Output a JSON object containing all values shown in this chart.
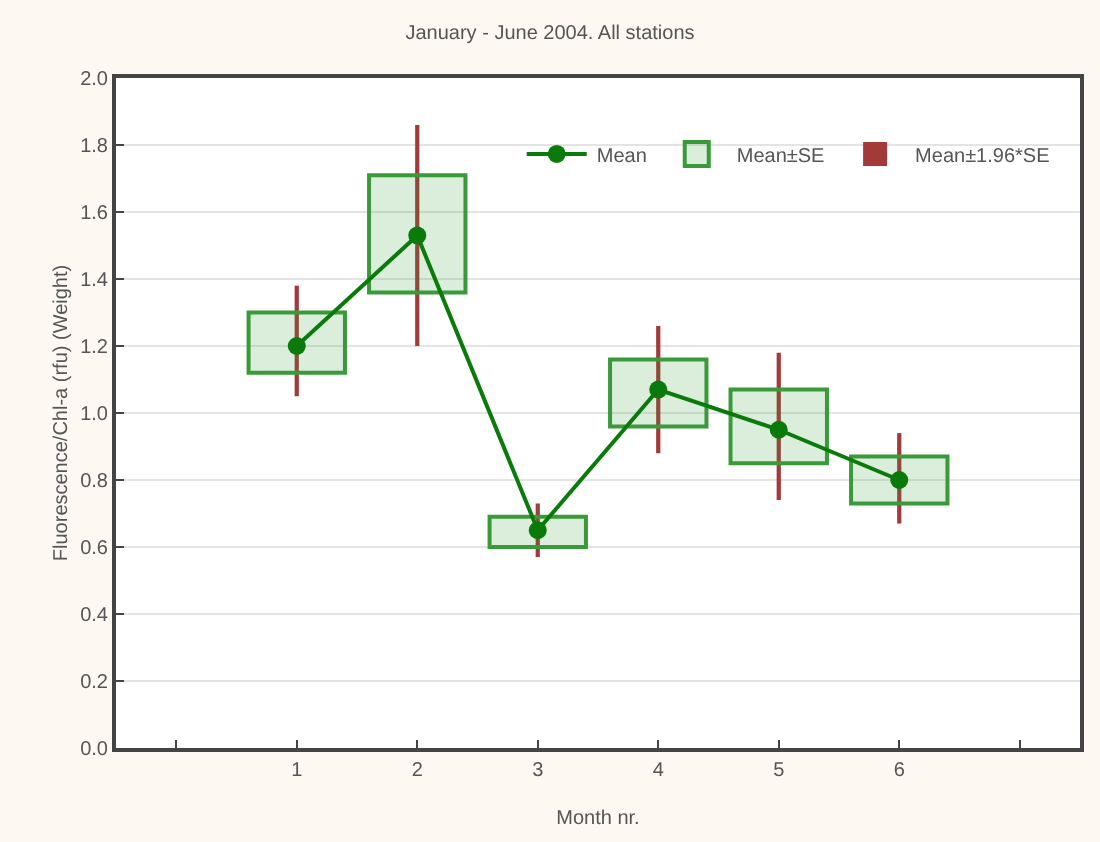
{
  "chart_data": {
    "type": "bar",
    "title": "January - June 2004. All stations",
    "xlabel": "Month nr.",
    "ylabel": "Fluorescence/Chl-a (rfu) (Weight)",
    "x": [
      1,
      2,
      3,
      4,
      5,
      6
    ],
    "xlim": [
      -0.5,
      7.5
    ],
    "xticks": [
      {
        "value": 0,
        "label": null
      },
      1,
      2,
      3,
      4,
      5,
      6,
      {
        "value": 7,
        "label": null
      }
    ],
    "ylim": [
      0,
      2
    ],
    "yticks": [
      {
        "value": 0,
        "label": "0.0"
      },
      {
        "value": 0.2,
        "label": "0.2"
      },
      {
        "value": 0.4,
        "label": "0.4"
      },
      {
        "value": 0.6,
        "label": "0.6"
      },
      {
        "value": 0.8,
        "label": "0.8"
      },
      {
        "value": 1,
        "label": "1.0"
      },
      {
        "value": 1.2,
        "label": "1.2"
      },
      {
        "value": 1.4,
        "label": "1.4"
      },
      {
        "value": 1.6,
        "label": "1.6"
      },
      {
        "value": 1.8,
        "label": "1.8"
      },
      {
        "value": 2,
        "label": "2.0"
      }
    ],
    "grid": "y",
    "legend": "top right",
    "series": [
      {
        "name": "Mean",
        "type": "line",
        "marker": "circle",
        "color": "#0a7a0a",
        "values": [
          1.2,
          1.53,
          0.65,
          1.07,
          0.95,
          0.8
        ]
      },
      {
        "name": "Mean±SE",
        "color": "#3a9a3a",
        "base": [
          1.12,
          1.36,
          0.6,
          0.96,
          0.85,
          0.73
        ],
        "values": [
          0.18,
          0.35,
          0.09,
          0.2,
          0.22,
          0.14
        ]
      },
      {
        "name": "Mean±1.96*SE",
        "color": "#a33a3a",
        "base": [
          1.05,
          1.2,
          0.57,
          0.88,
          0.74,
          0.67
        ],
        "values": [
          0.33,
          0.66,
          0.16,
          0.38,
          0.44,
          0.27
        ]
      }
    ]
  }
}
